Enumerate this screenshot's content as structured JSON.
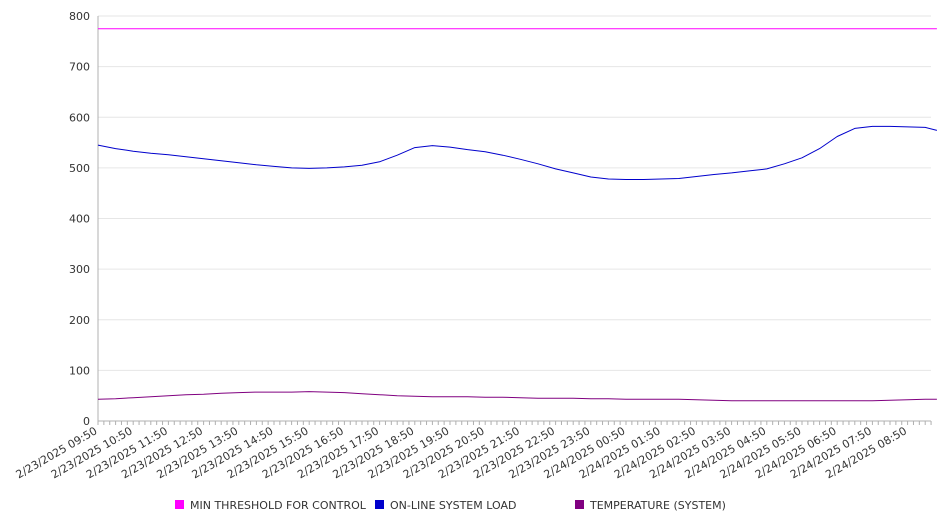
{
  "chart_data": {
    "type": "line",
    "title": "",
    "xlabel": "",
    "ylabel": "",
    "ylim": [
      0,
      800
    ],
    "yticks": [
      0,
      100,
      200,
      300,
      400,
      500,
      600,
      700,
      800
    ],
    "grid": true,
    "legend_position": "bottom",
    "x_tick_labels": [
      "2/23/2025 09:50",
      "2/23/2025 10:50",
      "2/23/2025 11:50",
      "2/23/2025 12:50",
      "2/23/2025 13:50",
      "2/23/2025 14:50",
      "2/23/2025 15:50",
      "2/23/2025 16:50",
      "2/23/2025 17:50",
      "2/23/2025 18:50",
      "2/23/2025 19:50",
      "2/23/2025 20:50",
      "2/23/2025 21:50",
      "2/23/2025 22:50",
      "2/23/2025 23:50",
      "2/24/2025 00:50",
      "2/24/2025 01:50",
      "2/24/2025 02:50",
      "2/24/2025 03:50",
      "2/24/2025 04:50",
      "2/24/2025 05:50",
      "2/24/2025 06:50",
      "2/24/2025 07:50",
      "2/24/2025 08:50"
    ],
    "x": [
      "2/23/2025 09:50",
      "2/23/2025 10:20",
      "2/23/2025 10:50",
      "2/23/2025 11:20",
      "2/23/2025 11:50",
      "2/23/2025 12:20",
      "2/23/2025 12:50",
      "2/23/2025 13:20",
      "2/23/2025 13:50",
      "2/23/2025 14:20",
      "2/23/2025 14:50",
      "2/23/2025 15:20",
      "2/23/2025 15:50",
      "2/23/2025 16:20",
      "2/23/2025 16:50",
      "2/23/2025 17:20",
      "2/23/2025 17:50",
      "2/23/2025 18:20",
      "2/23/2025 18:50",
      "2/23/2025 19:20",
      "2/23/2025 19:50",
      "2/23/2025 20:20",
      "2/23/2025 20:50",
      "2/23/2025 21:20",
      "2/23/2025 21:50",
      "2/23/2025 22:20",
      "2/23/2025 22:50",
      "2/23/2025 23:20",
      "2/23/2025 23:50",
      "2/24/2025 00:20",
      "2/24/2025 00:50",
      "2/24/2025 01:20",
      "2/24/2025 01:50",
      "2/24/2025 02:20",
      "2/24/2025 02:50",
      "2/24/2025 03:20",
      "2/24/2025 03:50",
      "2/24/2025 04:20",
      "2/24/2025 04:50",
      "2/24/2025 05:20",
      "2/24/2025 05:50",
      "2/24/2025 06:20",
      "2/24/2025 06:50",
      "2/24/2025 07:20",
      "2/24/2025 07:50",
      "2/24/2025 08:20",
      "2/24/2025 08:50",
      "2/24/2025 09:20",
      "2/24/2025 09:40"
    ],
    "series": [
      {
        "name": "MIN THRESHOLD FOR CONTROL",
        "color": "#ff00ff",
        "values": [
          775,
          775,
          775,
          775,
          775,
          775,
          775,
          775,
          775,
          775,
          775,
          775,
          775,
          775,
          775,
          775,
          775,
          775,
          775,
          775,
          775,
          775,
          775,
          775,
          775,
          775,
          775,
          775,
          775,
          775,
          775,
          775,
          775,
          775,
          775,
          775,
          775,
          775,
          775,
          775,
          775,
          775,
          775,
          775,
          775,
          775,
          775,
          775,
          775
        ]
      },
      {
        "name": "ON-LINE SYSTEM LOAD",
        "color": "#0000cc",
        "values": [
          545,
          538,
          533,
          529,
          526,
          522,
          518,
          514,
          510,
          506,
          503,
          500,
          499,
          500,
          502,
          505,
          512,
          525,
          540,
          544,
          541,
          536,
          532,
          525,
          517,
          508,
          498,
          490,
          482,
          478,
          477,
          477,
          478,
          479,
          483,
          487,
          490,
          494,
          498,
          508,
          520,
          538,
          562,
          578,
          582,
          582,
          581,
          580,
          574
        ]
      },
      {
        "name": "TEMPERATURE (SYSTEM)",
        "color": "#800080",
        "values": [
          43,
          44,
          46,
          48,
          50,
          52,
          53,
          55,
          56,
          57,
          57,
          57,
          58,
          57,
          56,
          54,
          52,
          50,
          49,
          48,
          48,
          48,
          47,
          47,
          46,
          45,
          45,
          45,
          44,
          44,
          43,
          43,
          43,
          43,
          42,
          41,
          40,
          40,
          40,
          40,
          40,
          40,
          40,
          40,
          40,
          41,
          42,
          43,
          43
        ]
      }
    ]
  }
}
